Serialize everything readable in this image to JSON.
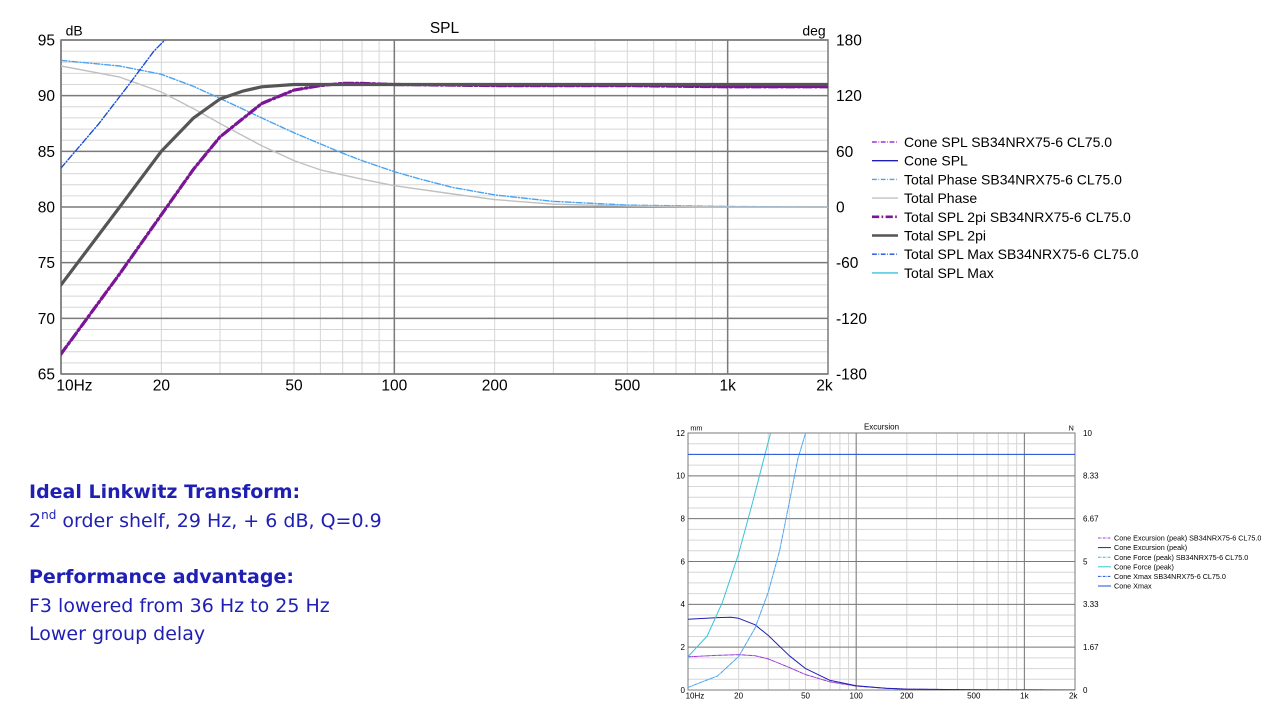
{
  "colors": {
    "cone_spl_sb": "#9b37d0",
    "cone_spl": "#1f1fb4",
    "total_phase_sb": "#4aa3f0",
    "total_phase": "#c0c0c0",
    "total_spl_2pi_sb": "#7a1596",
    "total_spl_2pi": "#555555",
    "total_spl_max_sb": "#1b4ed8",
    "total_spl_max": "#38c4d8",
    "text_blue": "#1f1fb4"
  },
  "notes": {
    "heading1": "Ideal Linkwitz Transform:",
    "line1_prefix": "2",
    "line1_sup": "nd",
    "line1_rest": " order shelf, 29 Hz, + 6 dB, Q=0.9",
    "heading2": "Performance advantage:",
    "line2": "F3 lowered from 36 Hz to 25 Hz",
    "line3": "Lower group delay"
  },
  "chart_data": [
    {
      "type": "line",
      "title": "SPL",
      "xscale": "log",
      "xlim": [
        10,
        2000
      ],
      "ylim": [
        65,
        95
      ],
      "y2lim": [
        -180,
        180
      ],
      "ylabel": "dB",
      "y2label": "deg",
      "x_ticks": [
        10,
        20,
        50,
        100,
        200,
        500,
        1000,
        2000
      ],
      "x_tick_labels": [
        "10Hz",
        "20",
        "50",
        "100",
        "200",
        "500",
        "1k",
        "2k"
      ],
      "y_ticks": [
        65,
        70,
        75,
        80,
        85,
        90,
        95
      ],
      "y2_ticks": [
        -180,
        -120,
        -60,
        0,
        60,
        120,
        180
      ],
      "grid": true,
      "legend_position": "right",
      "series": [
        {
          "name": "Cone SPL SB34NRX75-6 CL75.0",
          "color_key": "cone_spl_sb",
          "style": "dash-dot",
          "axis": "none",
          "x": [],
          "y": []
        },
        {
          "name": "Cone SPL",
          "color_key": "cone_spl",
          "style": "solid",
          "axis": "none",
          "x": [],
          "y": []
        },
        {
          "name": "Total Phase SB34NRX75-6 CL75.0",
          "color_key": "total_phase_sb",
          "style": "dash-dot",
          "axis": "y2",
          "x": [
            10,
            15,
            20,
            25,
            30,
            40,
            50,
            60,
            70,
            80,
            100,
            120,
            150,
            200,
            300,
            500,
            1000,
            2000
          ],
          "y": [
            158,
            152,
            143,
            130,
            117,
            96,
            80,
            68,
            58,
            50,
            38,
            30,
            21,
            13,
            6,
            2,
            0.5,
            0
          ]
        },
        {
          "name": "Total Phase",
          "color_key": "total_phase",
          "style": "solid",
          "axis": "y2",
          "x": [
            10,
            15,
            20,
            25,
            30,
            40,
            50,
            60,
            80,
            100,
            150,
            200,
            300,
            500,
            1000,
            2000
          ],
          "y": [
            152,
            140,
            124,
            106,
            90,
            66,
            50,
            40,
            30,
            23,
            14,
            8,
            3,
            1,
            0,
            0
          ]
        },
        {
          "name": "Total SPL 2pi SB34NRX75-6 CL75.0",
          "color_key": "total_spl_2pi_sb",
          "style": "bold-dash-dot",
          "axis": "y",
          "x": [
            10,
            15,
            20,
            25,
            30,
            40,
            50,
            60,
            70,
            80,
            100,
            200,
            500,
            1000,
            2000
          ],
          "y": [
            66.8,
            74.0,
            79.3,
            83.4,
            86.3,
            89.3,
            90.5,
            90.9,
            91.1,
            91.1,
            91.0,
            90.9,
            90.9,
            90.8,
            90.8
          ]
        },
        {
          "name": "Total SPL 2pi",
          "color_key": "total_spl_2pi",
          "style": "bold-solid",
          "axis": "y",
          "x": [
            10,
            15,
            20,
            25,
            30,
            35,
            40,
            50,
            60,
            100,
            200,
            500,
            1000,
            2000
          ],
          "y": [
            73.0,
            80.0,
            85.0,
            88.0,
            89.7,
            90.4,
            90.8,
            91.0,
            91.0,
            91.0,
            91.0,
            91.0,
            91.0,
            91.0
          ]
        },
        {
          "name": "Total SPL Max SB34NRX75-6 CL75.0",
          "color_key": "total_spl_max_sb",
          "style": "dash-dot",
          "axis": "y",
          "x": [
            10,
            13,
            16,
            19,
            20.5
          ],
          "y": [
            83.5,
            87.5,
            91.0,
            94.0,
            95.0
          ]
        },
        {
          "name": "Total SPL Max",
          "color_key": "total_spl_max",
          "style": "solid",
          "axis": "none",
          "x": [],
          "y": []
        }
      ]
    },
    {
      "type": "line",
      "title": "Excursion",
      "xscale": "log",
      "xlim": [
        10,
        2000
      ],
      "ylim": [
        0,
        12
      ],
      "y2lim": [
        0,
        10
      ],
      "ylabel": "mm",
      "y2label": "N",
      "x_ticks": [
        10,
        20,
        50,
        100,
        200,
        500,
        1000,
        2000
      ],
      "x_tick_labels": [
        "10Hz",
        "20",
        "50",
        "100",
        "200",
        "500",
        "1k",
        "2k"
      ],
      "y_ticks": [
        0,
        2,
        4,
        6,
        8,
        10,
        12
      ],
      "y2_tick_labels": [
        "0",
        "1.67",
        "3.33",
        "5",
        "6.67",
        "8.33",
        "10"
      ],
      "grid": true,
      "legend_position": "right",
      "series": [
        {
          "name": "Cone Excursion (peak) SB34NRX75-6 CL75.0",
          "color_key": "cone_spl_sb",
          "style": "dash-dot",
          "axis": "y",
          "x": [
            10,
            15,
            20,
            25,
            30,
            40,
            50,
            70,
            100,
            150,
            200,
            500,
            2000
          ],
          "y": [
            1.55,
            1.62,
            1.65,
            1.6,
            1.45,
            1.05,
            0.72,
            0.38,
            0.18,
            0.08,
            0.04,
            0.01,
            0
          ]
        },
        {
          "name": "Cone Excursion (peak)",
          "color_key": "cone_spl",
          "style": "solid",
          "axis": "y",
          "x": [
            10,
            15,
            18,
            20,
            25,
            30,
            40,
            50,
            70,
            100,
            150,
            200,
            500,
            2000
          ],
          "y": [
            3.3,
            3.38,
            3.4,
            3.35,
            3.05,
            2.55,
            1.6,
            1.0,
            0.45,
            0.2,
            0.08,
            0.04,
            0.01,
            0
          ]
        },
        {
          "name": "Cone Force (peak) SB34NRX75-6 CL75.0",
          "color_key": "total_phase_sb",
          "style": "dash-dot",
          "axis": "y2",
          "x": [
            10,
            15,
            20,
            25,
            30,
            35,
            40,
            45,
            50
          ],
          "y": [
            0.1,
            0.55,
            1.3,
            2.4,
            3.8,
            5.4,
            7.3,
            9.0,
            10.0
          ]
        },
        {
          "name": "Cone Force (peak)",
          "color_key": "total_spl_max",
          "style": "solid",
          "axis": "y2",
          "x": [
            10,
            13,
            16,
            20,
            24,
            28,
            31
          ],
          "y": [
            1.3,
            2.1,
            3.4,
            5.3,
            7.2,
            8.9,
            10.0
          ]
        },
        {
          "name": "Cone Xmax SB34NRX75-6 CL75.0",
          "color_key": "total_spl_max_sb",
          "style": "dash-dot",
          "axis": "none",
          "x": [],
          "y": []
        },
        {
          "name": "Cone Xmax",
          "color_key": "total_spl_max_sb",
          "style": "solid",
          "axis": "y",
          "x": [
            10,
            2000
          ],
          "y": [
            11.0,
            11.0
          ]
        }
      ]
    }
  ]
}
